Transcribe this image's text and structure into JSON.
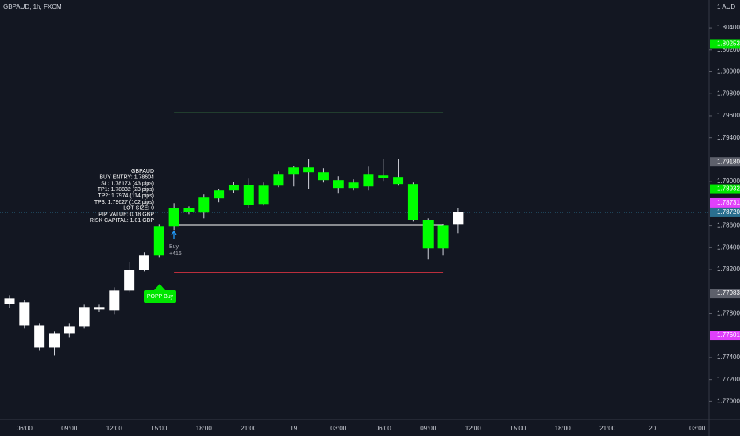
{
  "chart_data": {
    "type": "candlestick",
    "title": "GBPAUD, 1h, FXCM",
    "currency_label": "1 AUD",
    "categories": [
      null,
      "06:00",
      null,
      null,
      "09:00",
      null,
      null,
      "12:00",
      null,
      null,
      "15:00",
      null,
      null,
      "18:00",
      null,
      null,
      "21:00",
      null,
      null,
      "19",
      null,
      null,
      "03:00",
      null,
      null,
      "06:00",
      null,
      null,
      "09:00",
      null,
      null,
      "12:00",
      null,
      null,
      "15:00",
      null,
      null,
      "18:00",
      null,
      null,
      "21:00",
      null,
      null,
      "20",
      null,
      null,
      "03:00"
    ],
    "open": [
      1.77888,
      1.77902,
      1.77692,
      1.7749,
      1.7762,
      1.77685,
      1.77837,
      1.7783,
      1.7801,
      1.78198,
      1.78328,
      1.78595,
      1.78725,
      1.78718,
      1.78848,
      1.7892,
      1.7897,
      1.78797,
      1.78963,
      1.79064,
      1.79129,
      1.79086,
      1.79014,
      1.78992,
      1.78956,
      1.79035,
      1.79043,
      1.78978,
      1.78653,
      1.78393,
      1.78609,
      null,
      null,
      null,
      null,
      null,
      null,
      null,
      null,
      null,
      null,
      null,
      null,
      null,
      null,
      null,
      null
    ],
    "high": [
      1.77967,
      1.77924,
      1.77707,
      1.77635,
      1.77707,
      1.7788,
      1.7788,
      1.78039,
      1.7827,
      1.78357,
      1.78609,
      1.78804,
      1.78775,
      1.78884,
      1.78934,
      1.78999,
      1.79028,
      1.78992,
      1.79093,
      1.79144,
      1.79209,
      1.79122,
      1.7905,
      1.79021,
      1.79136,
      1.79209,
      1.79209,
      1.78992,
      1.78667,
      1.78617,
      1.78761,
      null,
      null,
      null,
      null,
      null,
      null,
      null,
      null,
      null,
      null,
      null,
      null,
      null,
      null,
      null,
      null
    ],
    "low": [
      1.77851,
      1.77664,
      1.77461,
      1.77418,
      1.77584,
      1.77664,
      1.77815,
      1.77794,
      1.77996,
      1.78183,
      1.78313,
      1.78559,
      1.78703,
      1.78667,
      1.78812,
      1.78898,
      1.78761,
      1.78783,
      1.78949,
      1.78956,
      1.78934,
      1.78992,
      1.78891,
      1.7892,
      1.7892,
      1.79007,
      1.78963,
      1.78638,
      1.78292,
      1.78328,
      1.7853,
      null,
      null,
      null,
      null,
      null,
      null,
      null,
      null,
      null,
      null,
      null,
      null,
      null,
      null,
      null,
      null
    ],
    "close": [
      1.77938,
      1.77692,
      1.7749,
      1.7762,
      1.77685,
      1.77859,
      1.77859,
      1.7801,
      1.78198,
      1.78328,
      1.78595,
      1.78761,
      1.78761,
      1.78855,
      1.7892,
      1.7897,
      1.7879,
      1.78963,
      1.79064,
      1.79129,
      1.79086,
      1.79014,
      1.78942,
      1.78942,
      1.79064,
      1.79057,
      1.78978,
      1.78653,
      1.78393,
      1.78602,
      1.7872,
      null,
      null,
      null,
      null,
      null,
      null,
      null,
      null,
      null,
      null,
      null,
      null,
      null,
      null,
      null,
      null
    ],
    "candle_colors": [
      "#ffffff",
      "#ffffff",
      "#ffffff",
      "#ffffff",
      "#ffffff",
      "#ffffff",
      "#ffffff",
      "#ffffff",
      "#ffffff",
      "#ffffff",
      "#00ff00",
      "#00ff00",
      "#00ff00",
      "#00ff00",
      "#00ff00",
      "#00ff00",
      "#00ff00",
      "#00ff00",
      "#00ff00",
      "#00ff00",
      "#00ff00",
      "#00ff00",
      "#00ff00",
      "#00ff00",
      "#00ff00",
      "#00ff00",
      "#00ff00",
      "#00ff00",
      "#00ff00",
      "#00ff00",
      "#ffffff",
      null,
      null,
      null,
      null,
      null,
      null,
      null,
      null,
      null,
      null,
      null,
      null,
      null,
      null,
      null,
      null
    ],
    "ylim": [
      1.76844,
      1.80653
    ],
    "yticks": [
      {
        "value": 1.804,
        "label": "1.80400"
      },
      {
        "value": 1.802,
        "label": "1.80200"
      },
      {
        "value": 1.8,
        "label": "1.80000"
      },
      {
        "value": 1.798,
        "label": "1.79800"
      },
      {
        "value": 1.796,
        "label": "1.79600"
      },
      {
        "value": 1.794,
        "label": "1.79400"
      },
      {
        "value": 1.79,
        "label": "1.79000"
      },
      {
        "value": 1.786,
        "label": "1.78600"
      },
      {
        "value": 1.784,
        "label": "1.78400"
      },
      {
        "value": 1.782,
        "label": "1.78200"
      },
      {
        "value": 1.778,
        "label": "1.77800"
      },
      {
        "value": 1.774,
        "label": "1.77400"
      },
      {
        "value": 1.772,
        "label": "1.77200"
      },
      {
        "value": 1.77,
        "label": "1.77000"
      }
    ],
    "levels": [
      {
        "value": 1.79627,
        "color": "#4caf50"
      },
      {
        "value": 1.78604,
        "color": "#ffffff"
      },
      {
        "value": 1.78173,
        "color": "#f23645"
      }
    ],
    "price_tags": [
      {
        "value": 1.80253,
        "label": "1.80253",
        "color": "#00e600"
      },
      {
        "value": 1.7918,
        "label": "1.79180",
        "color": "#5d606b"
      },
      {
        "value": 1.78932,
        "label": "1.78932",
        "color": "#00e600"
      },
      {
        "value": 1.78731,
        "label": "1.78731",
        "color": "#e040fb"
      },
      {
        "value": 1.7872,
        "label": "1.78720",
        "color": "#2a6f8f"
      },
      {
        "value": 1.77983,
        "label": "1.77983",
        "color": "#5d606b"
      },
      {
        "value": 1.77601,
        "label": "1.77601",
        "color": "#e040fb"
      }
    ],
    "annotation": [
      "GBPAUD",
      "BUY ENTRY: 1.78604",
      "SL: 1.78173 (43 pips)",
      "TP1: 1.78832 (23 pips)",
      "TP2: 1.7974 (114 pips)",
      "TP3: 1.79627 (102 pips)",
      "LOT SIZE: 0",
      "PIP VALUE: 0.18 GBP",
      "RISK CAPITAL: 1.01 GBP"
    ],
    "signal_label": "POPP Buy",
    "buy_marker": {
      "text": "Buy",
      "amount": "+416"
    }
  }
}
